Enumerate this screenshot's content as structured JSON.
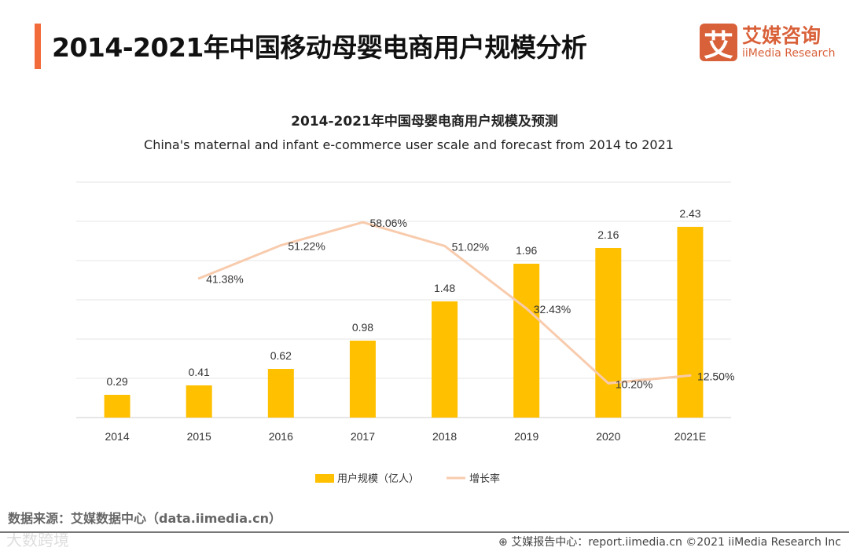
{
  "header": {
    "title": "2014-2021年中国移动母婴电商用户规模分析"
  },
  "logo": {
    "mark": "艾",
    "cn": "艾媒咨询",
    "en": "iiMedia Research"
  },
  "chart_data": {
    "type": "bar",
    "title": "2014-2021年中国母婴电商用户规模及预测",
    "subtitle": "China's maternal and infant e-commerce user scale and forecast from 2014 to 2021",
    "categories": [
      "2014",
      "2015",
      "2016",
      "2017",
      "2018",
      "2019",
      "2020",
      "2021E"
    ],
    "series": [
      {
        "name": "用户规模（亿人）",
        "type": "bar",
        "color": "#ffc000",
        "values": [
          0.29,
          0.41,
          0.62,
          0.98,
          1.48,
          1.96,
          2.16,
          2.43
        ],
        "labels": [
          "0.29",
          "0.41",
          "0.62",
          "0.98",
          "1.48",
          "1.96",
          "2.16",
          "2.43"
        ]
      },
      {
        "name": "增长率",
        "type": "line",
        "color": "#f8cbad",
        "values": [
          null,
          41.38,
          51.22,
          58.06,
          51.02,
          32.43,
          10.2,
          12.5
        ],
        "labels": [
          "",
          "41.38%",
          "51.22%",
          "58.06%",
          "51.02%",
          "32.43%",
          "10.20%",
          "12.50%"
        ]
      }
    ],
    "ylim": [
      0,
      3
    ],
    "y2lim": [
      0,
      70
    ],
    "grid": true,
    "legend": "bottom"
  },
  "footer": {
    "source": "数据来源：艾媒数据中心（data.iimedia.cn）",
    "watermark": "大数跨境",
    "right": "⊕ 艾媒报告中心：report.iimedia.cn   ©2021  iiMedia Research  Inc"
  }
}
